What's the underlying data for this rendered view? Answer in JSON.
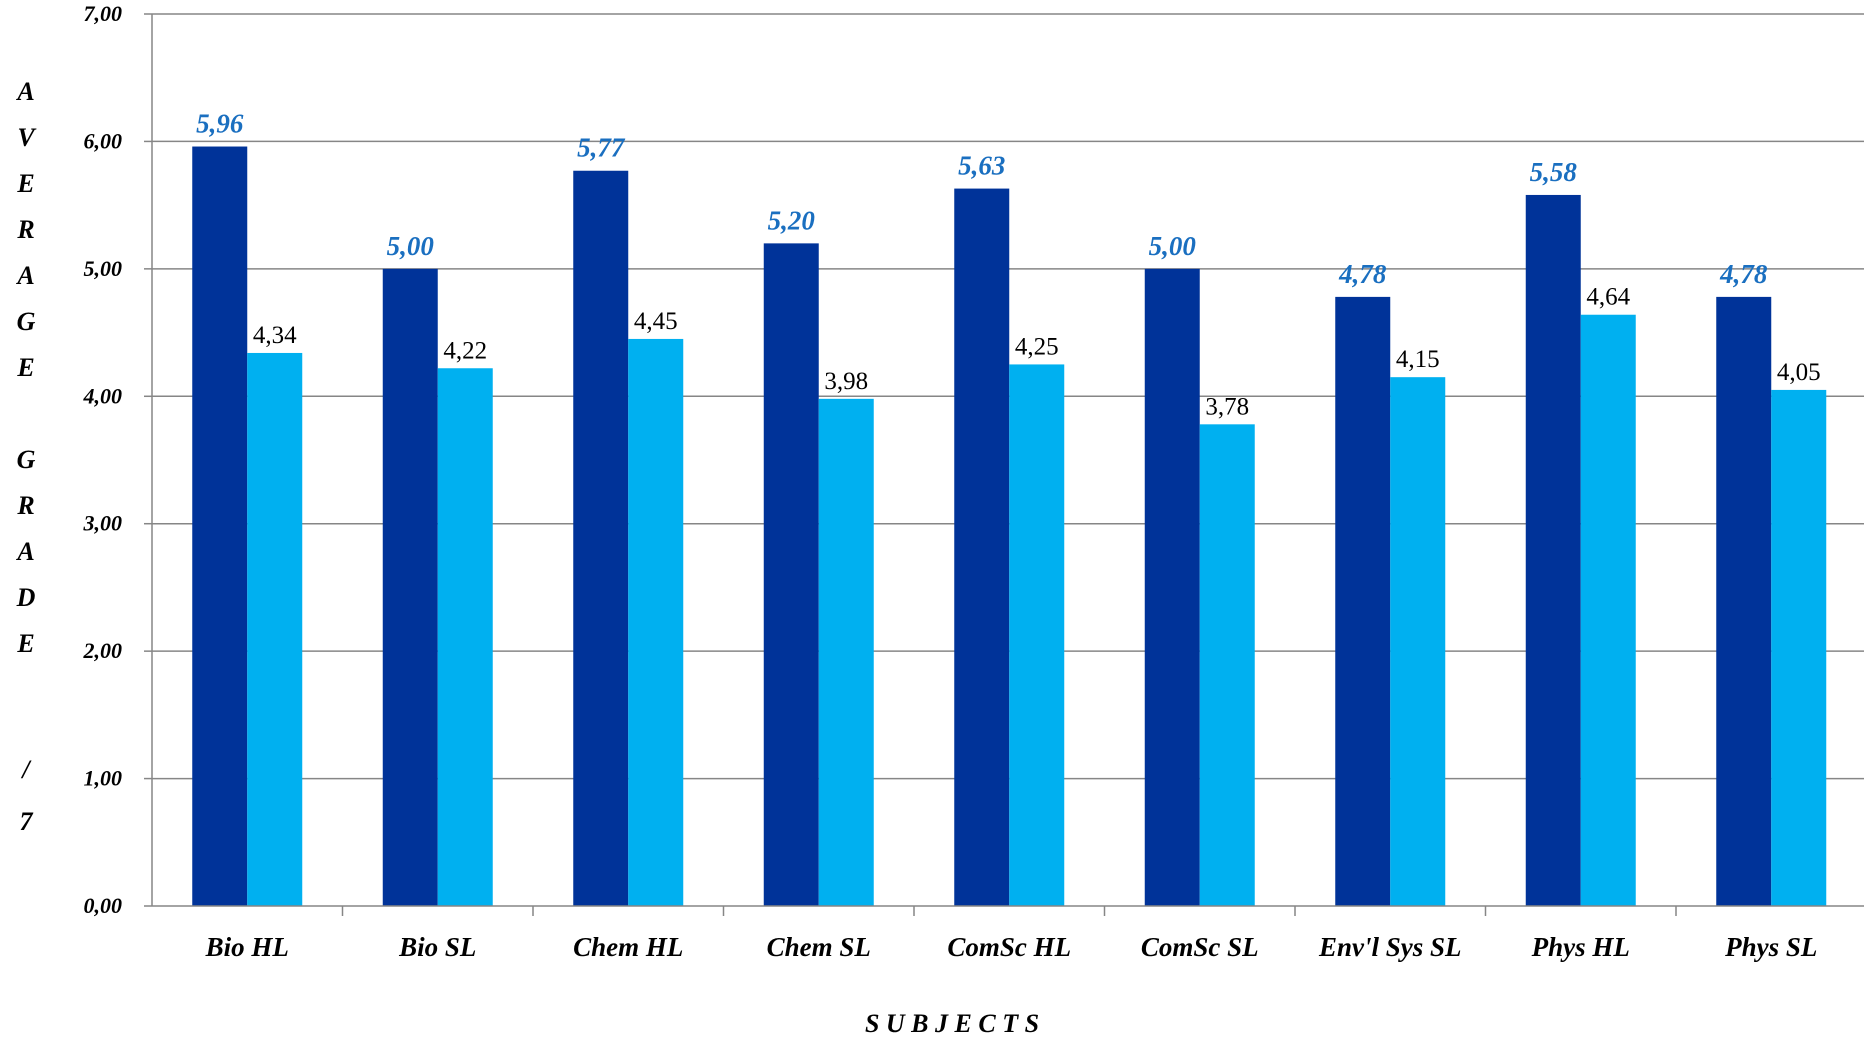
{
  "chart_data": {
    "type": "bar",
    "categories": [
      "Bio HL",
      "Bio SL",
      "Chem HL",
      "Chem SL",
      "ComSc HL",
      "ComSc SL",
      "Env'l Sys SL",
      "Phys HL",
      "Phys SL"
    ],
    "series": [
      {
        "values": [
          5.96,
          5.0,
          5.77,
          5.2,
          5.63,
          5.0,
          4.78,
          5.58,
          4.78
        ],
        "color": "#003399",
        "label_color": "#1a6fc0"
      },
      {
        "values": [
          4.34,
          4.22,
          4.45,
          3.98,
          4.25,
          3.78,
          4.15,
          4.64,
          4.05
        ],
        "color": "#00b0f0",
        "label_color": "#000000"
      }
    ],
    "data_labels": [
      [
        "5,96",
        "5,00",
        "5,77",
        "5,20",
        "5,63",
        "5,00",
        "4,78",
        "5,58",
        "4,78"
      ],
      [
        "4,34",
        "4,22",
        "4,45",
        "3,98",
        "4,25",
        "3,78",
        "4,15",
        "4,64",
        "4,05"
      ]
    ],
    "yticks": [
      "0,00",
      "1,00",
      "2,00",
      "3,00",
      "4,00",
      "5,00",
      "6,00",
      "7,00"
    ],
    "ylim": [
      0,
      7
    ],
    "ylabel": "A V E R A G E  G R A D E  / 7",
    "xlabel": "S U B J E C T S",
    "grid": true,
    "legend": "none"
  }
}
